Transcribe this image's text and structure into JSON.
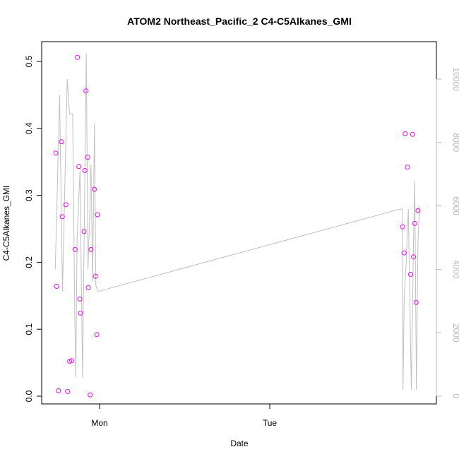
{
  "chart_data": {
    "type": "scatter",
    "title": "ATOM2 Northeast_Pacific_2 C4-C5Alkanes_GMI",
    "xlabel": "Date",
    "ylabel": "C4-C5Alkanes_GMI",
    "xlim_hours_label": [
      "Mon",
      "Tue"
    ],
    "x_ticks": [
      {
        "label": "Mon",
        "day": 0
      },
      {
        "label": "Tue",
        "day": 1
      }
    ],
    "ylim": [
      -0.013,
      0.52
    ],
    "y_ticks": [
      0.0,
      0.1,
      0.2,
      0.3,
      0.4,
      0.5
    ],
    "y2lim": [
      -250,
      10600
    ],
    "y2_ticks": [
      0,
      2000,
      4000,
      6000,
      8000,
      10000
    ],
    "colors": {
      "points": "#ff00ff",
      "line": "#c0c0c0",
      "axis": "#000000",
      "right_axis": "#b8b8b8"
    },
    "series": [
      {
        "kind": "points",
        "axis": "left",
        "x_day": [
          -0.257,
          -0.252,
          -0.241,
          -0.224,
          -0.219,
          -0.198,
          -0.188,
          -0.176,
          -0.164,
          -0.143,
          -0.13,
          -0.122,
          -0.116,
          -0.112,
          -0.091,
          -0.086,
          -0.08,
          -0.07,
          -0.066,
          -0.055,
          -0.05,
          -0.031,
          -0.024,
          -0.016,
          -0.012,
          1.781,
          1.79,
          1.796,
          1.809,
          1.828,
          1.84,
          1.845,
          1.852,
          1.86,
          1.871
        ],
        "y": [
          0.363,
          0.164,
          0.008,
          0.38,
          0.268,
          0.286,
          0.007,
          0.052,
          0.053,
          0.219,
          0.506,
          0.343,
          0.145,
          0.124,
          0.246,
          0.337,
          0.456,
          0.357,
          0.162,
          0.002,
          0.219,
          0.309,
          0.179,
          0.092,
          0.271,
          0.253,
          0.214,
          0.392,
          0.342,
          0.182,
          0.391,
          0.208,
          0.258,
          0.14,
          0.277
        ]
      },
      {
        "kind": "line",
        "axis": "right",
        "x_day": [
          -0.26,
          -0.235,
          -0.218,
          -0.19,
          -0.176,
          -0.158,
          -0.146,
          -0.14,
          -0.132,
          -0.115,
          -0.1,
          -0.078,
          -0.068,
          -0.059,
          -0.05,
          -0.041,
          -0.03,
          -0.022,
          -0.01,
          1.765,
          1.778,
          1.783,
          1.79,
          1.801,
          1.814,
          1.832,
          1.844,
          1.852,
          1.862,
          1.871,
          1.88
        ],
        "y2": [
          4000,
          9500,
          3300,
          10000,
          8900,
          8900,
          2700,
          600,
          5000,
          7100,
          600,
          10800,
          4000,
          5500,
          7300,
          3600,
          8600,
          3500,
          3300,
          5900,
          5900,
          200,
          3100,
          4100,
          5900,
          200,
          4600,
          6800,
          200,
          4900,
          6000
        ]
      }
    ]
  }
}
